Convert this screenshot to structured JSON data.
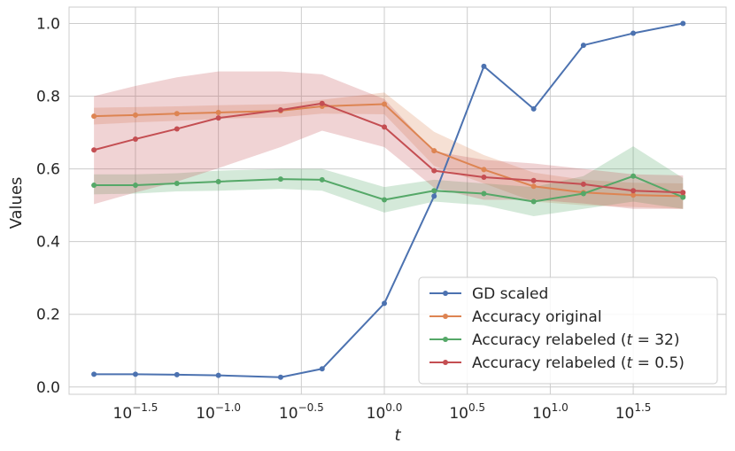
{
  "chart_data": {
    "type": "line",
    "xscale": "log10",
    "xlabel": "t",
    "ylabel": "Values",
    "xlim_log10": [
      -1.9,
      2.06
    ],
    "ylim": [
      -0.02,
      1.045
    ],
    "grid": true,
    "legend_placement": "lower-right",
    "xticks": [
      {
        "log10": -1.5,
        "base": "10",
        "exp": "−1.5"
      },
      {
        "log10": -1.0,
        "base": "10",
        "exp": "−1.0"
      },
      {
        "log10": -0.5,
        "base": "10",
        "exp": "−0.5"
      },
      {
        "log10": 0.0,
        "base": "10",
        "exp": "0.0"
      },
      {
        "log10": 0.5,
        "base": "10",
        "exp": "0.5"
      },
      {
        "log10": 1.0,
        "base": "10",
        "exp": "1.0"
      },
      {
        "log10": 1.5,
        "base": "10",
        "exp": "1.5"
      }
    ],
    "yticks": [
      {
        "value": 0.0,
        "label": "0.0"
      },
      {
        "value": 0.2,
        "label": "0.2"
      },
      {
        "value": 0.4,
        "label": "0.4"
      },
      {
        "value": 0.6,
        "label": "0.6"
      },
      {
        "value": 0.8,
        "label": "0.8"
      },
      {
        "value": 1.0,
        "label": "1.0"
      }
    ],
    "x_log10": [
      -1.75,
      -1.5,
      -1.25,
      -1.0,
      -0.625,
      -0.375,
      0.0,
      0.3,
      0.6,
      0.9,
      1.2,
      1.5,
      1.8
    ],
    "series": [
      {
        "name": "GD scaled",
        "legend_prefix": "GD scaled",
        "legend_math": "",
        "legend_suffix": "",
        "color": "#4c72b0",
        "values": [
          0.035,
          0.035,
          0.034,
          0.032,
          0.027,
          0.05,
          0.23,
          0.525,
          0.882,
          0.765,
          0.94,
          0.973,
          1.0
        ],
        "lower": null,
        "upper": null
      },
      {
        "name": "Accuracy original",
        "legend_prefix": "Accuracy original",
        "legend_math": "",
        "legend_suffix": "",
        "color": "#dd8452",
        "values": [
          0.745,
          0.748,
          0.752,
          0.755,
          0.76,
          0.772,
          0.778,
          0.65,
          0.598,
          0.552,
          0.535,
          0.528,
          0.525
        ],
        "lower": [
          0.722,
          0.728,
          0.732,
          0.738,
          0.742,
          0.752,
          0.75,
          0.608,
          0.56,
          0.51,
          0.5,
          0.495,
          0.49
        ],
        "upper": [
          0.768,
          0.77,
          0.772,
          0.775,
          0.778,
          0.79,
          0.81,
          0.702,
          0.638,
          0.59,
          0.57,
          0.562,
          0.56
        ]
      },
      {
        "name": "Accuracy relabeled (t = 32)",
        "legend_prefix": "Accuracy relabeled (",
        "legend_math": "t",
        "legend_suffix": " = 32)",
        "color": "#55a868",
        "values": [
          0.555,
          0.555,
          0.56,
          0.565,
          0.572,
          0.57,
          0.515,
          0.54,
          0.532,
          0.51,
          0.532,
          0.58,
          0.522
        ],
        "lower": [
          0.53,
          0.532,
          0.538,
          0.54,
          0.545,
          0.54,
          0.48,
          0.51,
          0.5,
          0.47,
          0.49,
          0.51,
          0.49
        ],
        "upper": [
          0.585,
          0.585,
          0.588,
          0.595,
          0.6,
          0.6,
          0.55,
          0.57,
          0.56,
          0.55,
          0.58,
          0.662,
          0.575
        ]
      },
      {
        "name": "Accuracy relabeled (t = 0.5)",
        "legend_prefix": "Accuracy relabeled (",
        "legend_math": "t",
        "legend_suffix": " = 0.5)",
        "color": "#c44e52",
        "values": [
          0.652,
          0.682,
          0.71,
          0.74,
          0.762,
          0.78,
          0.715,
          0.595,
          0.577,
          0.568,
          0.558,
          0.54,
          0.535
        ],
        "lower": [
          0.503,
          0.535,
          0.565,
          0.602,
          0.66,
          0.705,
          0.66,
          0.548,
          0.515,
          0.515,
          0.505,
          0.49,
          0.49
        ],
        "upper": [
          0.8,
          0.828,
          0.852,
          0.868,
          0.868,
          0.86,
          0.792,
          0.648,
          0.625,
          0.615,
          0.6,
          0.585,
          0.582
        ]
      }
    ]
  }
}
